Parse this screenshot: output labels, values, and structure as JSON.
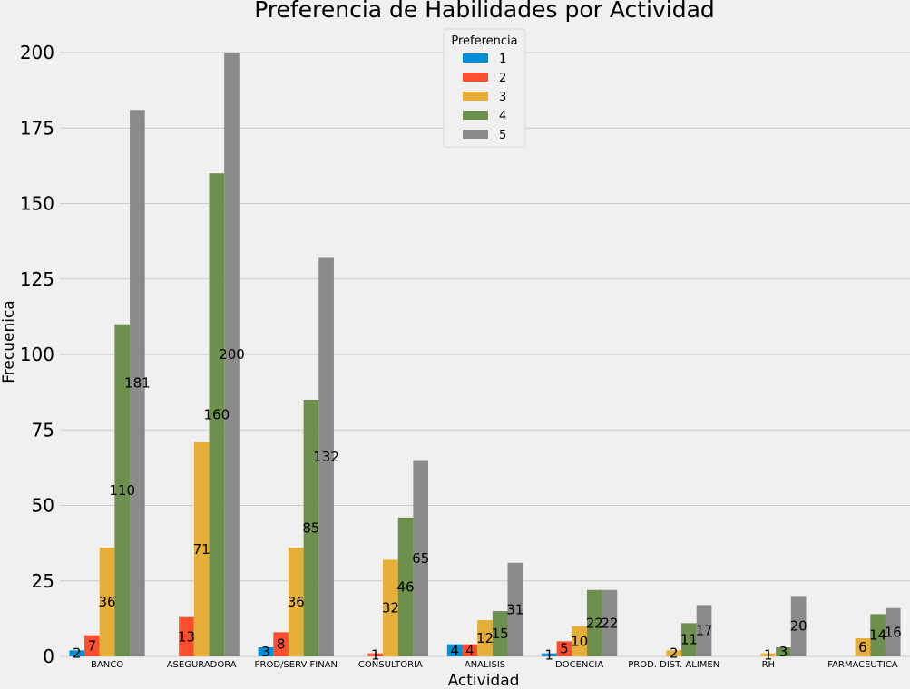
{
  "chart_data": {
    "type": "bar",
    "title": "Preferencia de Habilidades por Actividad",
    "xlabel": "Actividad",
    "ylabel": "Frecuenica",
    "ylim": [
      0,
      200
    ],
    "yticks": [
      0,
      25,
      50,
      75,
      100,
      125,
      150,
      175,
      200
    ],
    "grid": true,
    "legend": {
      "title": "Preferencia",
      "position": "top-center"
    },
    "categories": [
      "BANCO",
      "ASEGURADORA",
      "PROD/SERV FINAN",
      "CONSULTORIA",
      "ANALISIS",
      "DOCENCIA",
      "PROD. DIST. ALIMEN",
      "RH",
      "FARMACEUTICA"
    ],
    "series": [
      {
        "name": "1",
        "color": "#008fd5",
        "values": [
          2,
          null,
          3,
          null,
          4,
          1,
          null,
          null,
          null
        ]
      },
      {
        "name": "2",
        "color": "#fc4f30",
        "values": [
          7,
          13,
          8,
          1,
          4,
          5,
          null,
          null,
          null
        ]
      },
      {
        "name": "3",
        "color": "#e5ae38",
        "values": [
          36,
          71,
          36,
          32,
          12,
          10,
          2,
          1,
          6
        ]
      },
      {
        "name": "4",
        "color": "#6d904f",
        "values": [
          110,
          160,
          85,
          46,
          15,
          22,
          11,
          3,
          14
        ]
      },
      {
        "name": "5",
        "color": "#8b8b8b",
        "values": [
          181,
          200,
          132,
          65,
          31,
          22,
          17,
          20,
          16
        ]
      }
    ]
  }
}
